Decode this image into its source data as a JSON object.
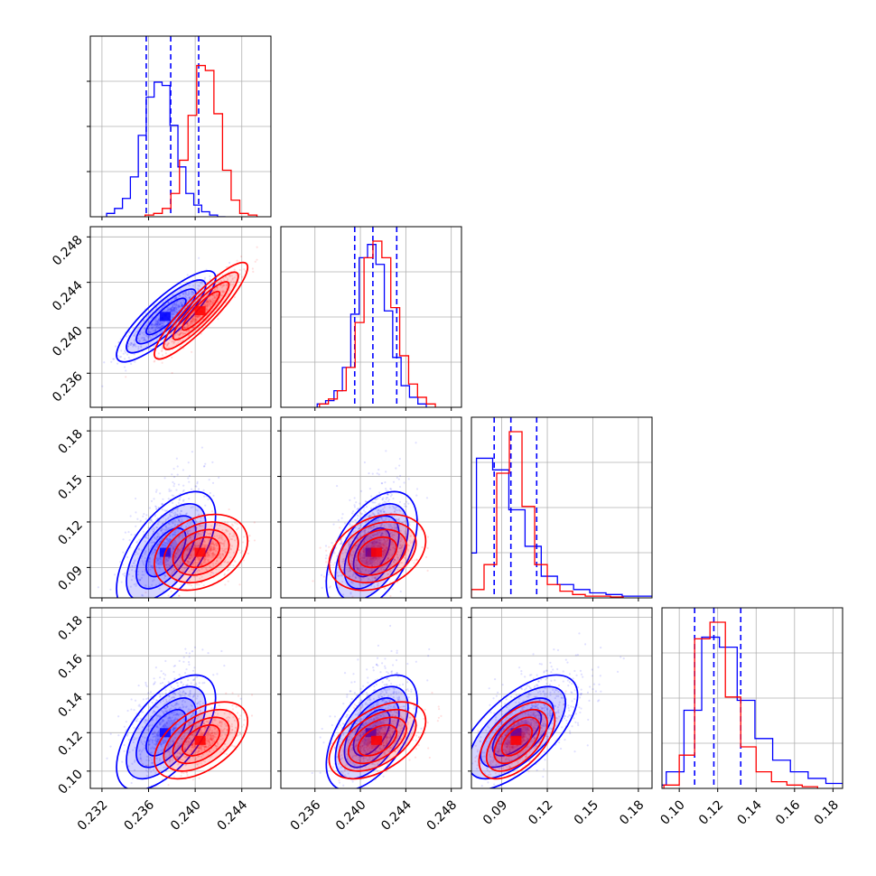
{
  "colors": {
    "series_a": "#0000ff",
    "series_b": "#ff0000",
    "grid": "#b0b0b0",
    "frame": "#000000"
  },
  "chart_data": {
    "type": "corner",
    "grid": true,
    "series": [
      {
        "color": "#0000ff",
        "means": [
          0.2375,
          0.241,
          0.1,
          0.12
        ],
        "sds": [
          0.0017,
          0.0016,
          0.016,
          0.012
        ],
        "rho": [
          [
            1,
            0.85,
            0.6,
            0.6
          ],
          [
            0.85,
            1,
            0.5,
            0.55
          ],
          [
            0.6,
            0.5,
            1,
            0.65
          ],
          [
            0.6,
            0.55,
            0.65,
            1
          ]
        ],
        "quantile_lines": [
          [
            0.2358,
            0.2379,
            0.2403
          ],
          [
            0.2395,
            0.2411,
            0.2432
          ],
          [
            0.085,
            0.096,
            0.113
          ],
          [
            0.108,
            0.118,
            0.132
          ]
        ],
        "histograms": [
          [
            0.02,
            0.05,
            0.11,
            0.24,
            0.49,
            0.72,
            0.81,
            0.79,
            0.55,
            0.3,
            0.14,
            0.07,
            0.03,
            0.01,
            0.0
          ],
          [
            0.02,
            0.04,
            0.1,
            0.24,
            0.56,
            0.9,
            0.98,
            0.86,
            0.58,
            0.3,
            0.13,
            0.06,
            0.02
          ],
          [
            0.02,
            0.27,
            0.84,
            0.77,
            0.53,
            0.31,
            0.13,
            0.08,
            0.05,
            0.03,
            0.02,
            0.01,
            0.01,
            0.005,
            0.005
          ],
          [
            0.02,
            0.1,
            0.47,
            0.91,
            0.85,
            0.53,
            0.3,
            0.17,
            0.1,
            0.06,
            0.03,
            0.01,
            0.005
          ]
        ]
      },
      {
        "color": "#ff0000",
        "means": [
          0.2405,
          0.2415,
          0.1,
          0.116
        ],
        "sds": [
          0.0016,
          0.0017,
          0.01,
          0.008
        ],
        "rho": [
          [
            1,
            0.9,
            0.3,
            0.5
          ],
          [
            0.9,
            1,
            0.3,
            0.5
          ],
          [
            0.3,
            0.3,
            1,
            0.55
          ],
          [
            0.5,
            0.5,
            0.55,
            1
          ]
        ],
        "quantile_lines": [],
        "histograms": [
          [
            0.01,
            0.02,
            0.05,
            0.14,
            0.34,
            0.61,
            0.91,
            0.88,
            0.62,
            0.28,
            0.1,
            0.02,
            0.01
          ],
          [
            0.02,
            0.05,
            0.1,
            0.24,
            0.51,
            0.9,
            1.0,
            0.9,
            0.6,
            0.31,
            0.14,
            0.06,
            0.02
          ],
          [
            0.05,
            0.2,
            0.75,
            1.0,
            0.55,
            0.2,
            0.08,
            0.04,
            0.02,
            0.01,
            0.01,
            0.005
          ],
          [
            0.02,
            0.2,
            0.9,
            1.0,
            0.55,
            0.25,
            0.1,
            0.04,
            0.02,
            0.01
          ]
        ]
      }
    ],
    "parameters": [
      {
        "range": [
          0.231,
          0.2465
        ],
        "ticks": [
          0.232,
          0.236,
          0.24,
          0.244
        ],
        "tick_labels": [
          "0.232",
          "0.236",
          "0.240",
          "0.244"
        ]
      },
      {
        "range": [
          0.233,
          0.2489
        ],
        "ticks": [
          0.236,
          0.24,
          0.244,
          0.248
        ],
        "tick_labels": [
          "0.236",
          "0.240",
          "0.244",
          "0.248"
        ]
      },
      {
        "range": [
          0.07,
          0.189
        ],
        "ticks": [
          0.09,
          0.12,
          0.15,
          0.18
        ],
        "tick_labels": [
          "0.09",
          "0.12",
          "0.15",
          "0.18"
        ]
      },
      {
        "range": [
          0.091,
          0.185
        ],
        "ticks": [
          0.1,
          0.12,
          0.14,
          0.16,
          0.18
        ],
        "tick_labels": [
          "0.10",
          "0.12",
          "0.14",
          "0.16",
          "0.18"
        ]
      }
    ]
  }
}
